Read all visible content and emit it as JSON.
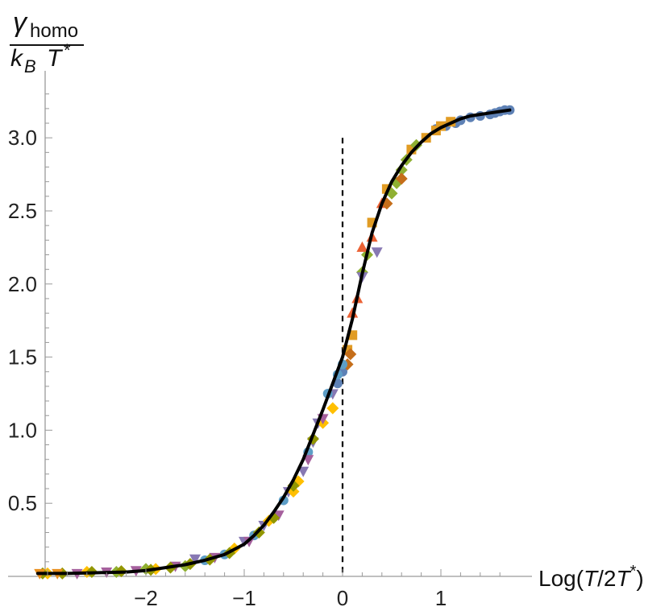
{
  "chart_data": {
    "type": "scatter",
    "title": "",
    "ylabel": {
      "numerator_symbol": "γ",
      "numerator_subscript": "homo",
      "denominator_k": "k",
      "denominator_k_subscript": "B",
      "denominator_T": "T",
      "denominator_T_sup": "*"
    },
    "xlabel": {
      "prefix": "Log(",
      "T1": "T",
      "middle": "/2",
      "T2": "T",
      "sup": "*",
      "suffix": ")"
    },
    "xlim": [
      -3.1,
      1.8
    ],
    "ylim": [
      0.0,
      3.33
    ],
    "x_ticks": [
      {
        "value": -2,
        "label": "−2"
      },
      {
        "value": -1,
        "label": "−1"
      },
      {
        "value": 0,
        "label": "0"
      },
      {
        "value": 1,
        "label": "1"
      }
    ],
    "y_ticks": [
      {
        "value": 0.5,
        "label": "0.5"
      },
      {
        "value": 1.0,
        "label": "1.0"
      },
      {
        "value": 1.5,
        "label": "1.5"
      },
      {
        "value": 2.0,
        "label": "2.0"
      },
      {
        "value": 2.5,
        "label": "2.5"
      },
      {
        "value": 3.0,
        "label": "3.0"
      }
    ],
    "vline": {
      "x": 0,
      "y_top": 3.0,
      "style": "dashed",
      "color": "#000000"
    },
    "curve": {
      "color": "#000000",
      "x": [
        -3.1,
        -2.8,
        -2.5,
        -2.2,
        -2.0,
        -1.8,
        -1.6,
        -1.4,
        -1.2,
        -1.0,
        -0.9,
        -0.8,
        -0.7,
        -0.6,
        -0.5,
        -0.4,
        -0.3,
        -0.2,
        -0.1,
        0.0,
        0.1,
        0.2,
        0.3,
        0.4,
        0.5,
        0.6,
        0.7,
        0.8,
        0.9,
        1.0,
        1.1,
        1.2,
        1.3,
        1.4,
        1.5,
        1.6,
        1.7
      ],
      "y": [
        0.02,
        0.02,
        0.025,
        0.03,
        0.04,
        0.06,
        0.08,
        0.11,
        0.15,
        0.22,
        0.28,
        0.35,
        0.44,
        0.54,
        0.66,
        0.8,
        0.97,
        1.14,
        1.32,
        1.5,
        1.76,
        2.07,
        2.35,
        2.55,
        2.7,
        2.81,
        2.9,
        2.97,
        3.03,
        3.07,
        3.1,
        3.13,
        3.15,
        3.16,
        3.17,
        3.18,
        3.19
      ]
    },
    "series": [
      {
        "marker": "circle",
        "color": "#5E81B5",
        "x": [
          0.95,
          1.05,
          1.15,
          1.2,
          1.3,
          1.4,
          1.5,
          1.55,
          1.6,
          1.65,
          1.7,
          -0.05,
          0.0
        ],
        "y": [
          3.06,
          3.08,
          3.1,
          3.12,
          3.14,
          3.15,
          3.16,
          3.17,
          3.18,
          3.19,
          3.19,
          1.32,
          1.4
        ]
      },
      {
        "marker": "square",
        "color": "#E19C24",
        "x": [
          0.7,
          0.85,
          0.95,
          1.0,
          1.1,
          0.05,
          0.1,
          0.3,
          0.45
        ],
        "y": [
          2.92,
          3.0,
          3.05,
          3.08,
          3.11,
          1.55,
          1.65,
          2.42,
          2.65
        ]
      },
      {
        "marker": "diamond",
        "color": "#8FB032",
        "x": [
          0.5,
          0.55,
          0.6,
          0.65,
          0.75,
          0.2,
          0.25,
          -2.3,
          -2.0,
          -1.6
        ],
        "y": [
          2.62,
          2.69,
          2.78,
          2.85,
          2.95,
          2.08,
          2.2,
          0.03,
          0.05,
          0.07
        ]
      },
      {
        "marker": "triangle-up",
        "color": "#EB6235",
        "x": [
          0.15,
          0.3,
          0.4,
          0.2,
          0.1
        ],
        "y": [
          1.9,
          2.32,
          2.55,
          2.25,
          1.8
        ]
      },
      {
        "marker": "triangle-down",
        "color": "#8778B3",
        "x": [
          0.2,
          0.35,
          -0.3,
          -0.4,
          -1.5,
          -1.0,
          -0.8,
          -0.55,
          -0.25,
          -0.1
        ],
        "y": [
          2.05,
          2.22,
          0.92,
          0.72,
          0.12,
          0.24,
          0.35,
          0.58,
          1.05,
          1.25
        ]
      },
      {
        "marker": "diamond",
        "color": "#C56E1A",
        "x": [
          0.05,
          0.08,
          0.45,
          0.6
        ],
        "y": [
          1.45,
          1.52,
          2.55,
          2.72
        ]
      },
      {
        "marker": "circle",
        "color": "#5D9EC7",
        "x": [
          -0.05,
          0.0,
          -0.15,
          -0.35,
          -0.6,
          -0.9,
          -1.2,
          -1.4
        ],
        "y": [
          1.38,
          1.45,
          1.25,
          0.85,
          0.52,
          0.28,
          0.15,
          0.11
        ]
      },
      {
        "marker": "diamond",
        "color": "#FFBF00",
        "x": [
          -3.0,
          -2.6,
          -1.9,
          -1.1,
          -0.2,
          -0.1,
          -0.45,
          -0.75,
          -0.5
        ],
        "y": [
          0.02,
          0.03,
          0.05,
          0.19,
          1.05,
          1.15,
          0.65,
          0.38,
          0.58
        ]
      },
      {
        "marker": "triangle-down",
        "color": "#A5609D",
        "x": [
          -2.7,
          -2.4,
          -2.1,
          -1.7,
          -1.3,
          -0.95,
          -0.65,
          -0.35,
          -0.2
        ],
        "y": [
          0.02,
          0.03,
          0.04,
          0.07,
          0.13,
          0.24,
          0.42,
          0.8,
          1.08
        ]
      },
      {
        "marker": "diamond",
        "color": "#929600",
        "x": [
          -3.05,
          -2.85,
          -2.55,
          -2.25,
          -1.95,
          -1.75,
          -1.55,
          -1.35,
          -1.15,
          -0.85,
          -0.7,
          -0.5,
          -0.3
        ],
        "y": [
          0.02,
          0.02,
          0.03,
          0.035,
          0.045,
          0.06,
          0.085,
          0.115,
          0.16,
          0.3,
          0.4,
          0.62,
          0.94
        ]
      },
      {
        "marker": "triangle-down",
        "color": "#E98F1E",
        "x": [
          -3.08,
          -2.9
        ],
        "y": [
          0.02,
          0.02
        ]
      }
    ]
  }
}
